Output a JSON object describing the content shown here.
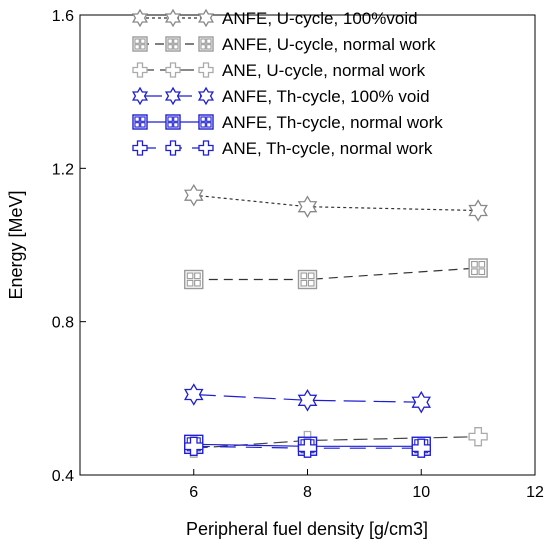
{
  "chart_data": {
    "type": "line",
    "title": "",
    "xlabel": "Peripheral fuel density [g/cm3]",
    "ylabel": "Energy [MeV]",
    "xlim": [
      4,
      12
    ],
    "ylim": [
      0.4,
      1.6
    ],
    "xticks": [
      6,
      8,
      10,
      12
    ],
    "yticks": [
      0.4,
      0.8,
      1.2,
      1.6
    ],
    "xtick_labels": [
      "6",
      "8",
      "10",
      "12"
    ],
    "ytick_labels": [
      "0.4",
      "0.8",
      "1.2",
      "1.6"
    ],
    "grid": false,
    "legend_position": "top-right",
    "series": [
      {
        "name": "ANFE, U-cycle, 100%void",
        "color": "#888888",
        "line_color": "#333333",
        "marker": "star",
        "dash": "3,3",
        "x": [
          6,
          8,
          11
        ],
        "y": [
          1.13,
          1.1,
          1.09
        ]
      },
      {
        "name": "ANFE, U-cycle, normal work",
        "color": "#999999",
        "line_color": "#333333",
        "marker": "boxgrid",
        "dash": "9,6",
        "x": [
          6,
          8,
          11
        ],
        "y": [
          0.91,
          0.91,
          0.94
        ]
      },
      {
        "name": "ANE, U-cycle, normal work",
        "color": "#aaaaaa",
        "line_color": "#444444",
        "marker": "cross",
        "dash": "14,6",
        "x": [
          6,
          8,
          11
        ],
        "y": [
          0.47,
          0.49,
          0.5
        ]
      },
      {
        "name": "ANFE, Th-cycle, 100% void",
        "color": "#1f1fd0",
        "line_color": "#1f1fd0",
        "marker": "star",
        "dash": "22,8",
        "x": [
          6,
          8,
          10
        ],
        "y": [
          0.61,
          0.595,
          0.59
        ]
      },
      {
        "name": "ANFE, Th-cycle, normal work",
        "color": "#1f1fd0",
        "line_color": "#1f1fd0",
        "marker": "boxgrid",
        "dash": "",
        "x": [
          6,
          8,
          10
        ],
        "y": [
          0.48,
          0.475,
          0.475
        ]
      },
      {
        "name": "ANE, Th-cycle, normal work",
        "color": "#1f1fd0",
        "line_color": "#1f1fd0",
        "marker": "cross",
        "dash": "16,10",
        "x": [
          6,
          8,
          10
        ],
        "y": [
          0.475,
          0.47,
          0.47
        ]
      }
    ]
  }
}
